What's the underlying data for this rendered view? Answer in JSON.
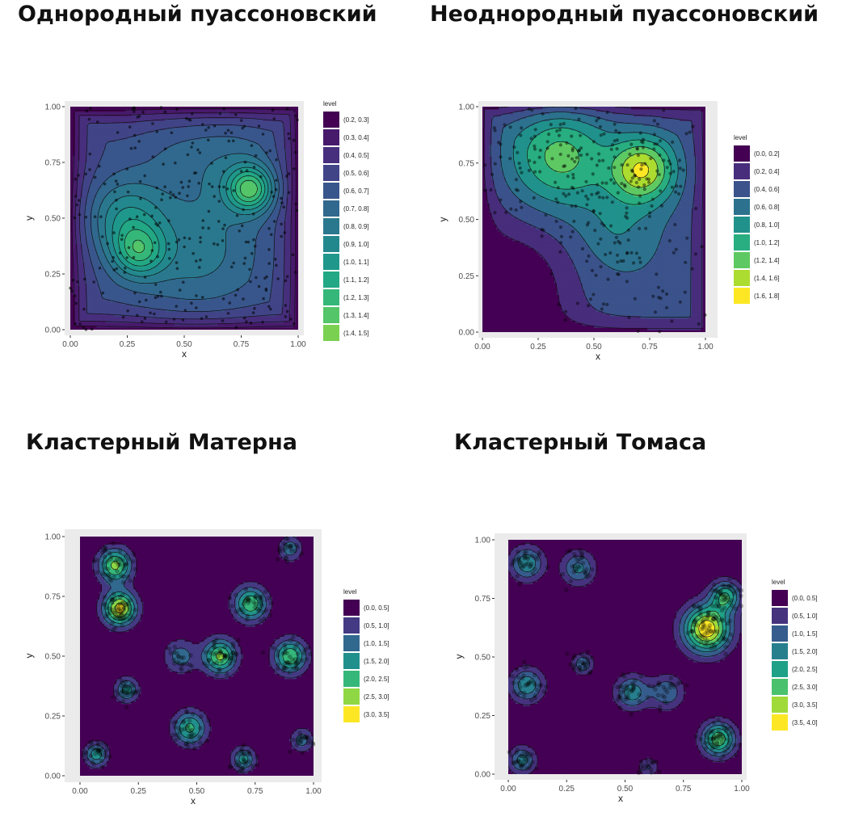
{
  "titles": {
    "homogeneous": "Однородный пуассоновский",
    "inhomogeneous": "Неоднородный пуассоновский",
    "matern": "Кластерный Матерна",
    "thomas": "Кластерный Томаса"
  },
  "chart_data": [
    {
      "id": "homogeneous",
      "type": "contour",
      "title": "Однородный пуассоновский",
      "xlabel": "x",
      "ylabel": "y",
      "xlim": [
        0,
        1
      ],
      "ylim": [
        0,
        1
      ],
      "xticks": [
        "0.00",
        "0.25",
        "0.50",
        "0.75",
        "1.00"
      ],
      "yticks": [
        "0.00",
        "0.25",
        "0.50",
        "0.75",
        "1.00"
      ],
      "legend_title": "level",
      "legend_position": "right",
      "levels": [
        "(0.2, 0.3]",
        "(0.3, 0.4]",
        "(0.4, 0.5]",
        "(0.5, 0.6]",
        "(0.6, 0.7]",
        "(0.7, 0.8]",
        "(0.8, 0.9]",
        "(0.9, 1.0]",
        "(1.0, 1.1]",
        "(1.1, 1.2]",
        "(1.2, 1.3]",
        "(1.3, 1.4]",
        "(1.4, 1.5]"
      ],
      "colors": [
        "#440154",
        "#481a6c",
        "#472f7d",
        "#414487",
        "#39568c",
        "#31688e",
        "#2a788e",
        "#23888e",
        "#1f988b",
        "#22a884",
        "#35b779",
        "#54c568",
        "#7ad151"
      ]
    },
    {
      "id": "inhomogeneous",
      "type": "contour",
      "title": "Неоднородный пуассоновский",
      "xlabel": "x",
      "ylabel": "y",
      "xlim": [
        0,
        1
      ],
      "ylim": [
        0,
        1
      ],
      "xticks": [
        "0.00",
        "0.25",
        "0.50",
        "0.75",
        "1.00"
      ],
      "yticks": [
        "0.00",
        "0.25",
        "0.50",
        "0.75",
        "1.00"
      ],
      "legend_title": "level",
      "legend_position": "right",
      "levels": [
        "(0.0, 0.2]",
        "(0.2, 0.4]",
        "(0.4, 0.6]",
        "(0.6, 0.8]",
        "(0.8, 1.0]",
        "(1.0, 1.2]",
        "(1.2, 1.4]",
        "(1.4, 1.6]",
        "(1.6, 1.8]"
      ],
      "colors": [
        "#440154",
        "#472d7b",
        "#3b528b",
        "#2c728e",
        "#21918c",
        "#28ae80",
        "#5ec962",
        "#addc30",
        "#fde725"
      ]
    },
    {
      "id": "matern",
      "type": "contour",
      "title": "Кластерный Матерна",
      "xlabel": "x",
      "ylabel": "y",
      "xlim": [
        0,
        1
      ],
      "ylim": [
        0,
        1
      ],
      "xticks": [
        "0.00",
        "0.25",
        "0.50",
        "0.75",
        "1.00"
      ],
      "yticks": [
        "0.00",
        "0.25",
        "0.50",
        "0.75",
        "1.00"
      ],
      "legend_title": "level",
      "legend_position": "right",
      "levels": [
        "(0.0, 0.5]",
        "(0.5, 1.0]",
        "(1.0, 1.5]",
        "(1.5, 2.0]",
        "(2.0, 2.5]",
        "(2.5, 3.0]",
        "(3.0, 3.5]"
      ],
      "colors": [
        "#440154",
        "#443a83",
        "#31688e",
        "#21908c",
        "#35b779",
        "#8fd744",
        "#fde725"
      ]
    },
    {
      "id": "thomas",
      "type": "contour",
      "title": "Кластерный Томаса",
      "xlabel": "x",
      "ylabel": "y",
      "xlim": [
        0,
        1
      ],
      "ylim": [
        0,
        1
      ],
      "xticks": [
        "0.00",
        "0.25",
        "0.50",
        "0.75",
        "1.00"
      ],
      "yticks": [
        "0.00",
        "0.25",
        "0.50",
        "0.75",
        "1.00"
      ],
      "legend_title": "level",
      "legend_position": "right",
      "levels": [
        "(0.0, 0.5]",
        "(0.5, 1.0]",
        "(1.0, 1.5]",
        "(1.5, 2.0]",
        "(2.0, 2.5]",
        "(2.5, 3.0]",
        "(3.0, 3.5]",
        "(3.5, 4.0]"
      ],
      "colors": [
        "#440154",
        "#46337e",
        "#365c8d",
        "#277f8e",
        "#1fa187",
        "#4ac16d",
        "#a0da39",
        "#fde725"
      ]
    }
  ]
}
